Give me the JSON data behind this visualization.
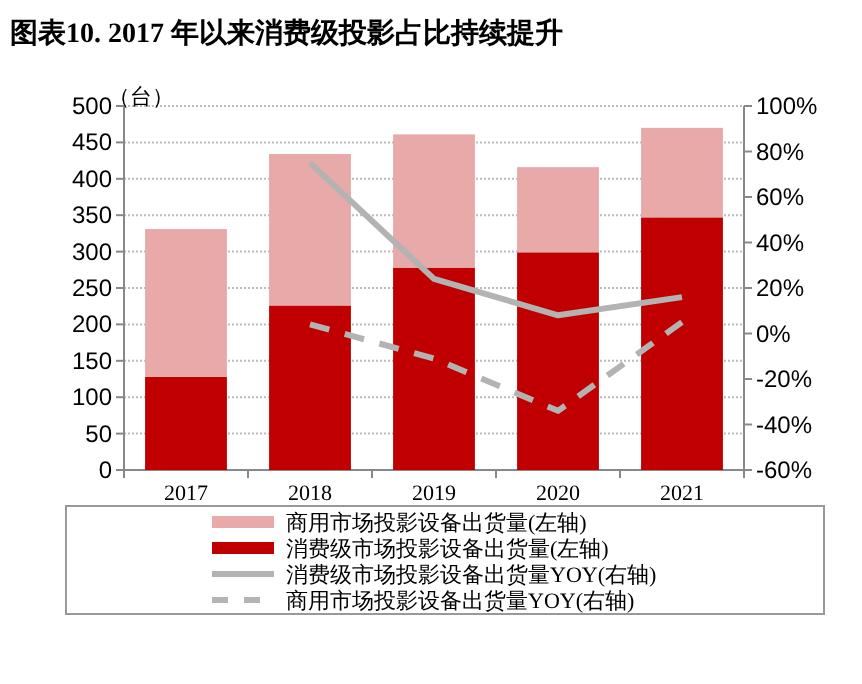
{
  "chart_data": {
    "type": "bar",
    "stacked": true,
    "title": "图表10. 2017 年以来消费级投影占比持续提升",
    "ylabel": "（台）",
    "categories": [
      "2017",
      "2018",
      "2019",
      "2020",
      "2021"
    ],
    "series": [
      {
        "name": "消费级市场投影设备出货量(左轴)",
        "color": "#c00000",
        "values": [
          128,
          226,
          278,
          299,
          347
        ]
      },
      {
        "name": "商用市场投影设备出货量(左轴)",
        "color": "#e8a9a9",
        "values": [
          203,
          208,
          183,
          117,
          123
        ]
      },
      {
        "name": "消费级市场投影设备出货量YOY(右轴)",
        "type": "line",
        "axis": "y2",
        "line_style": "solid",
        "color": "#b3b3b3",
        "values": [
          null,
          75,
          24,
          8,
          16
        ]
      },
      {
        "name": "商用市场投影设备出货量YOY(右轴)",
        "type": "line",
        "axis": "y2",
        "line_style": "dashed",
        "color": "#b3b3b3",
        "values": [
          null,
          4,
          -11,
          -34,
          5
        ]
      }
    ],
    "ylim": [
      0,
      500
    ],
    "yticks": [
      0,
      50,
      100,
      150,
      200,
      250,
      300,
      350,
      400,
      450,
      500
    ],
    "y2lim": [
      -60,
      100
    ],
    "y2ticks": [
      {
        "value": -60,
        "label": "-60%"
      },
      {
        "value": -40,
        "label": "-40%"
      },
      {
        "value": -20,
        "label": "-20%"
      },
      {
        "value": 0,
        "label": "0%"
      },
      {
        "value": 20,
        "label": "20%"
      },
      {
        "value": 40,
        "label": "40%"
      },
      {
        "value": 60,
        "label": "60%"
      },
      {
        "value": 80,
        "label": "80%"
      },
      {
        "value": 100,
        "label": "100%"
      }
    ],
    "grid": "y",
    "legend": "bottom"
  }
}
